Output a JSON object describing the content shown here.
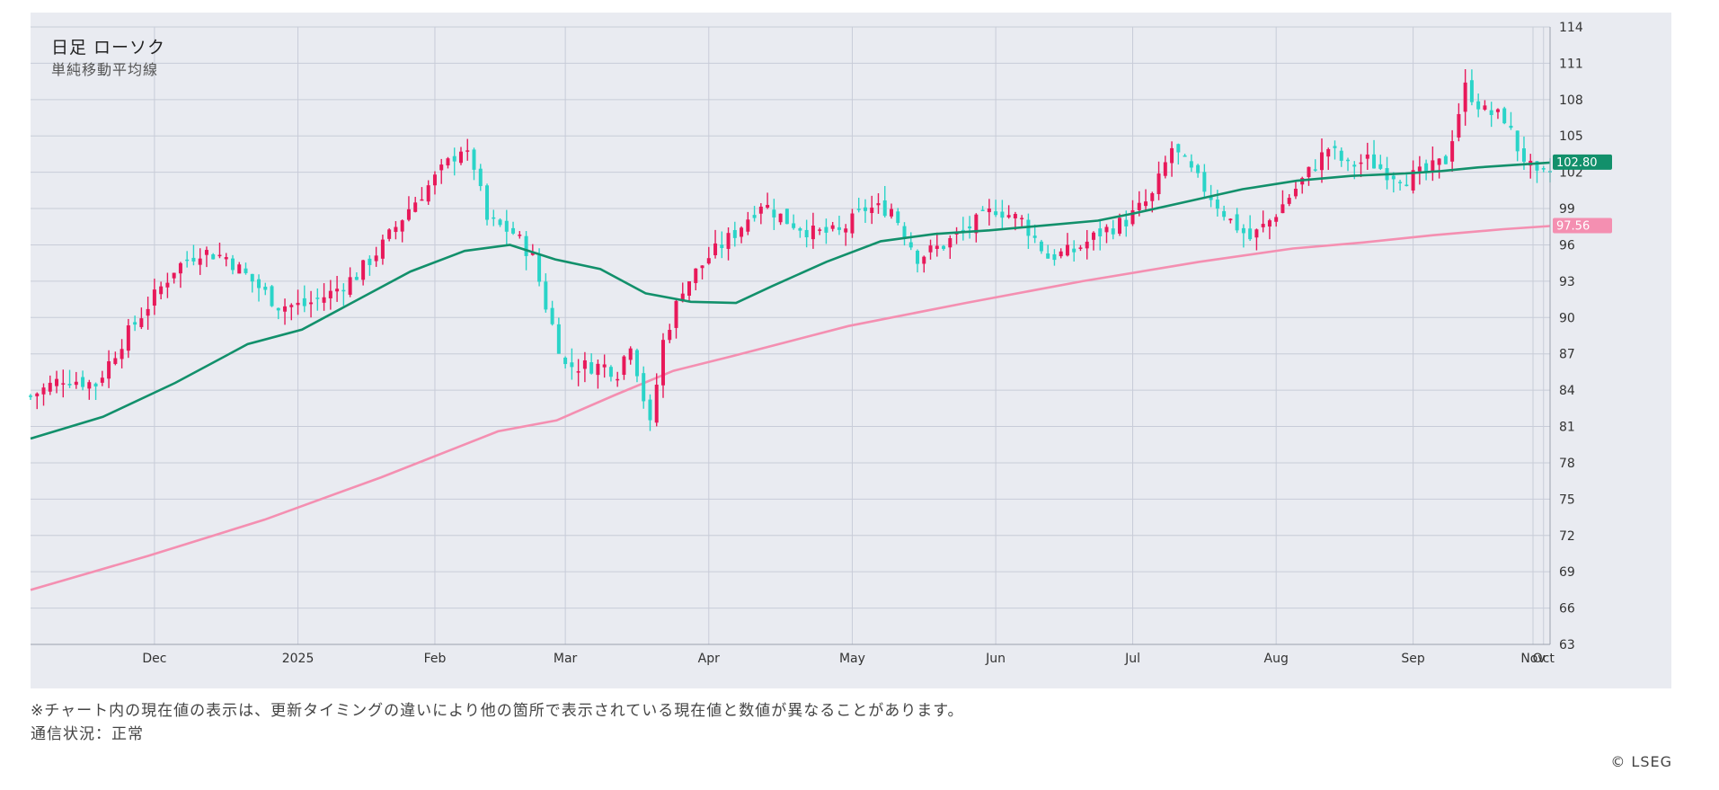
{
  "header": {
    "title": "日足 ローソク",
    "subtitle": "単純移動平均線"
  },
  "footer": {
    "note": "※チャート内の現在値の表示は、更新タイミングの違いにより他の箇所で表示されている現在値と数値が異なることがあります。",
    "status": "通信状況：正常",
    "copyright": "© LSEG"
  },
  "colors": {
    "panel": "#e9ebf1",
    "grid": "#c8ccd8",
    "up": "#e8195a",
    "down": "#2ad4c8",
    "ma_short": "#12906b",
    "ma_long": "#f48fb1"
  },
  "chart_data": {
    "type": "candlestick",
    "ylim": [
      63,
      114
    ],
    "y_ticks": [
      63,
      66,
      69,
      72,
      75,
      78,
      81,
      84,
      87,
      90,
      93,
      96,
      99,
      102,
      105,
      108,
      111,
      114
    ],
    "x_ticks": [
      "Dec",
      "2025",
      "Feb",
      "Mar",
      "Apr",
      "May",
      "Jun",
      "Jul",
      "Aug",
      "Sep",
      "Oct",
      "Nov"
    ],
    "current_short": "102.80",
    "current_long": "97.56",
    "price_anchors": [
      [
        0,
        83.5
      ],
      [
        5,
        85
      ],
      [
        10,
        84.5
      ],
      [
        14,
        88
      ],
      [
        18,
        91
      ],
      [
        22,
        94
      ],
      [
        26,
        95.5
      ],
      [
        30,
        95
      ],
      [
        34,
        93
      ],
      [
        38,
        91
      ],
      [
        42,
        91
      ],
      [
        46,
        92
      ],
      [
        50,
        93.5
      ],
      [
        54,
        96
      ],
      [
        58,
        99
      ],
      [
        62,
        101.5
      ],
      [
        66,
        104
      ],
      [
        68,
        102.5
      ],
      [
        70,
        98
      ],
      [
        74,
        97
      ],
      [
        77,
        95
      ],
      [
        79,
        91
      ],
      [
        82,
        86
      ],
      [
        85,
        86
      ],
      [
        88,
        86
      ],
      [
        90,
        85.5
      ],
      [
        92,
        88
      ],
      [
        95,
        81
      ],
      [
        97,
        88
      ],
      [
        100,
        92.5
      ],
      [
        104,
        95
      ],
      [
        108,
        97
      ],
      [
        112,
        99.5
      ],
      [
        116,
        98
      ],
      [
        120,
        97
      ],
      [
        124,
        97
      ],
      [
        128,
        99
      ],
      [
        132,
        99
      ],
      [
        136,
        95
      ],
      [
        140,
        96
      ],
      [
        144,
        97.5
      ],
      [
        148,
        99
      ],
      [
        152,
        98
      ],
      [
        156,
        95
      ],
      [
        160,
        95.5
      ],
      [
        164,
        97
      ],
      [
        168,
        98
      ],
      [
        172,
        100
      ],
      [
        175,
        104
      ],
      [
        178,
        102
      ],
      [
        181,
        100
      ],
      [
        184,
        98
      ],
      [
        187,
        96.5
      ],
      [
        190,
        98
      ],
      [
        193,
        100
      ],
      [
        196,
        102
      ],
      [
        199,
        104
      ],
      [
        202,
        102.5
      ],
      [
        205,
        103
      ],
      [
        208,
        102
      ],
      [
        211,
        101.5
      ],
      [
        214,
        102
      ],
      [
        217,
        103
      ],
      [
        220,
        109
      ],
      [
        223,
        107
      ],
      [
        226,
        106.5
      ],
      [
        228,
        104
      ],
      [
        231,
        101.5
      ],
      [
        233,
        102
      ]
    ],
    "ma_short_points": [
      [
        0,
        80
      ],
      [
        8,
        81.8
      ],
      [
        16,
        84.6
      ],
      [
        24,
        87.8
      ],
      [
        30,
        89
      ],
      [
        36,
        91.4
      ],
      [
        42,
        93.8
      ],
      [
        48,
        95.5
      ],
      [
        53,
        96
      ],
      [
        58,
        94.8
      ],
      [
        63,
        94
      ],
      [
        68,
        92
      ],
      [
        73,
        91.3
      ],
      [
        78,
        91.2
      ],
      [
        82,
        92.6
      ],
      [
        88,
        94.6
      ],
      [
        94,
        96.3
      ],
      [
        100,
        96.9
      ],
      [
        106,
        97.2
      ],
      [
        112,
        97.6
      ],
      [
        118,
        98
      ],
      [
        122,
        98.6
      ],
      [
        128,
        99.6
      ],
      [
        134,
        100.6
      ],
      [
        140,
        101.3
      ],
      [
        146,
        101.7
      ],
      [
        152,
        101.9
      ],
      [
        156,
        102.1
      ],
      [
        160,
        102.4
      ],
      [
        164,
        102.6
      ],
      [
        168,
        102.8
      ]
    ],
    "ma_long_points": [
      [
        0,
        67.5
      ],
      [
        10,
        70.3
      ],
      [
        20,
        73.3
      ],
      [
        30,
        76.8
      ],
      [
        40,
        80.6
      ],
      [
        45,
        81.5
      ],
      [
        50,
        83.6
      ],
      [
        55,
        85.6
      ],
      [
        60,
        86.8
      ],
      [
        70,
        89.3
      ],
      [
        80,
        91.2
      ],
      [
        90,
        93
      ],
      [
        100,
        94.6
      ],
      [
        108,
        95.7
      ],
      [
        114,
        96.2
      ],
      [
        120,
        96.8
      ],
      [
        126,
        97.3
      ],
      [
        130,
        97.56
      ]
    ]
  }
}
